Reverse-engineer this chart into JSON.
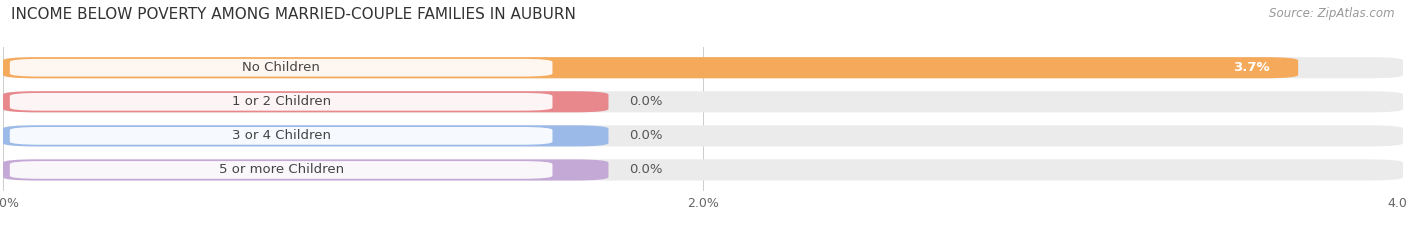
{
  "title": "INCOME BELOW POVERTY AMONG MARRIED-COUPLE FAMILIES IN AUBURN",
  "source": "Source: ZipAtlas.com",
  "categories": [
    "No Children",
    "1 or 2 Children",
    "3 or 4 Children",
    "5 or more Children"
  ],
  "values": [
    3.7,
    0.0,
    0.0,
    0.0
  ],
  "bar_colors": [
    "#F5A95A",
    "#E8888C",
    "#9BBAE8",
    "#C4A8D6"
  ],
  "background_color": "#FFFFFF",
  "bar_bg_color": "#EBEBEB",
  "xlim": [
    0,
    4.0
  ],
  "xticks": [
    0.0,
    2.0,
    4.0
  ],
  "xtick_labels": [
    "0.0%",
    "2.0%",
    "4.0%"
  ],
  "value_labels": [
    "3.7%",
    "0.0%",
    "0.0%",
    "0.0%"
  ],
  "title_fontsize": 11,
  "label_fontsize": 9.5,
  "tick_fontsize": 9,
  "source_fontsize": 8.5
}
